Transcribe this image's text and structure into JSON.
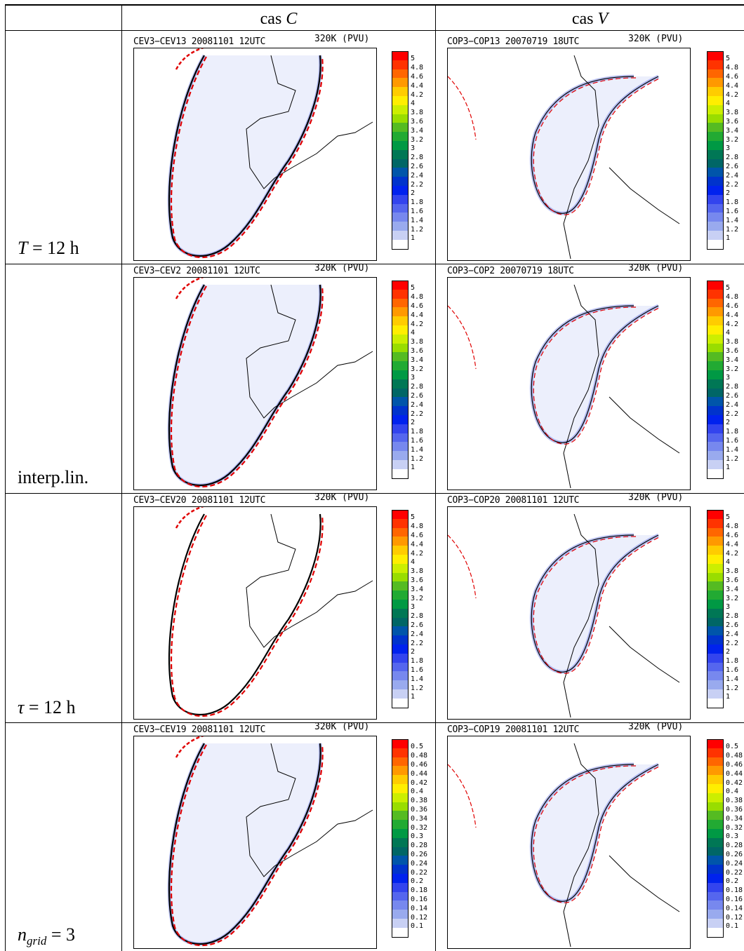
{
  "table": {
    "col_headers": [
      {
        "prefix": "cas ",
        "var": "C"
      },
      {
        "prefix": "cas ",
        "var": "V"
      }
    ],
    "row_labels": [
      {
        "text": "T = 12 h",
        "var": "T",
        "rest": " = 12 h"
      },
      {
        "text": "interp.lin.",
        "var": "",
        "rest": "interp.lin."
      },
      {
        "text": "τ = 12 h",
        "var": "τ",
        "rest": " = 12 h"
      },
      {
        "text": "n_grid = 3",
        "var": "n",
        "sub": "grid",
        "rest": " = 3"
      }
    ]
  },
  "panels": [
    {
      "title": "CEV3−CEV13 20081101 12UTC",
      "right": "320K (PVU)",
      "scale": "pvu"
    },
    {
      "title": "COP3−COP13 20070719 18UTC",
      "right": "320K (PVU)",
      "scale": "pvu"
    },
    {
      "title": "CEV3−CEV2 20081101 12UTC",
      "right": "320K (PVU)",
      "scale": "pvu"
    },
    {
      "title": "COP3−COP2 20070719 18UTC",
      "right": "320K (PVU)",
      "scale": "pvu"
    },
    {
      "title": "CEV3−CEV20 20081101 12UTC",
      "right": "320K (PVU)",
      "scale": "pvu"
    },
    {
      "title": "COP3−COP20 20081101 12UTC",
      "right": "320K (PVU)",
      "scale": "pvu"
    },
    {
      "title": "CEV3−CEV19 20081101 12UTC",
      "right": "320K (PVU)",
      "scale": "small"
    },
    {
      "title": "COP3−COP19 20081101 12UTC",
      "right": "320K (PVU)",
      "scale": "small"
    }
  ],
  "colorbars": {
    "pvu": [
      "5",
      "4.8",
      "4.6",
      "4.4",
      "4.2",
      "4",
      "3.8",
      "3.6",
      "3.4",
      "3.2",
      "3",
      "2.8",
      "2.6",
      "2.4",
      "2.2",
      "2",
      "1.8",
      "1.6",
      "1.4",
      "1.2",
      "1"
    ],
    "small": [
      "0.5",
      "0.48",
      "0.46",
      "0.44",
      "0.42",
      "0.4",
      "0.38",
      "0.36",
      "0.34",
      "0.32",
      "0.3",
      "0.28",
      "0.26",
      "0.24",
      "0.22",
      "0.2",
      "0.18",
      "0.16",
      "0.14",
      "0.12",
      "0.1"
    ],
    "colors": [
      "#ff0000",
      "#ff3300",
      "#ff6600",
      "#ff9900",
      "#ffcc00",
      "#ffee00",
      "#ccee00",
      "#99dd00",
      "#55bb22",
      "#22aa33",
      "#009944",
      "#007755",
      "#006666",
      "#0055aa",
      "#0033cc",
      "#0022ee",
      "#3344ee",
      "#5566ee",
      "#7788ee",
      "#99aaee",
      "#c8d0f4",
      "#ffffff"
    ]
  }
}
